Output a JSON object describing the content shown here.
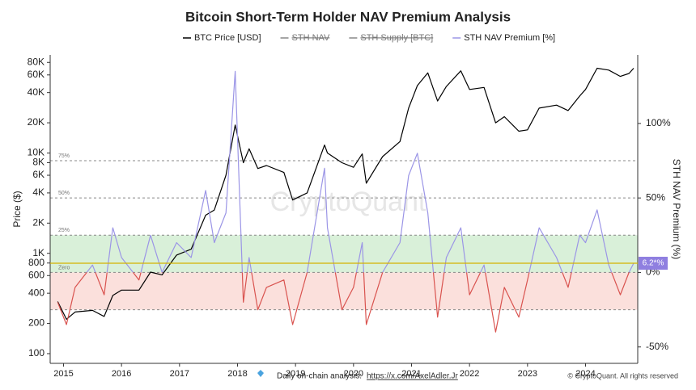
{
  "chart_data": {
    "type": "line",
    "title": "Bitcoin Short-Term Holder NAV Premium Analysis",
    "x": [
      2014.9,
      2015.05,
      2015.2,
      2015.5,
      2015.7,
      2015.85,
      2016.0,
      2016.3,
      2016.5,
      2016.7,
      2016.95,
      2017.2,
      2017.45,
      2017.6,
      2017.8,
      2017.96,
      2018.1,
      2018.2,
      2018.35,
      2018.5,
      2018.8,
      2018.95,
      2019.2,
      2019.5,
      2019.55,
      2019.8,
      2020.0,
      2020.15,
      2020.22,
      2020.5,
      2020.8,
      2020.95,
      2021.1,
      2021.28,
      2021.45,
      2021.6,
      2021.85,
      2022.0,
      2022.25,
      2022.45,
      2022.6,
      2022.85,
      2023.0,
      2023.2,
      2023.5,
      2023.7,
      2023.9,
      2024.0,
      2024.2,
      2024.4,
      2024.6,
      2024.75,
      2024.83
    ],
    "series": [
      {
        "name": "BTC Price [USD]",
        "color": "#000000",
        "values": [
          330,
          220,
          260,
          270,
          235,
          380,
          430,
          430,
          650,
          610,
          960,
          1100,
          2400,
          2700,
          6000,
          19000,
          8000,
          11000,
          7000,
          7500,
          6400,
          3400,
          4000,
          12000,
          10000,
          8000,
          7200,
          9800,
          5000,
          9200,
          13000,
          28000,
          47000,
          63000,
          33000,
          46000,
          66000,
          43000,
          45000,
          20000,
          23000,
          16500,
          17000,
          28000,
          30000,
          26500,
          37000,
          43000,
          70000,
          67000,
          58000,
          62000,
          70000
        ]
      },
      {
        "name": "STH NAV",
        "color": "#888888",
        "hidden": true
      },
      {
        "name": "STH Supply [BTC]",
        "color": "#888888",
        "hidden": true
      },
      {
        "name": "STH NAV Premium [%]",
        "color": "#9b95e6",
        "negative_color": "#d9534f",
        "axis": "y2",
        "values": [
          -20,
          -35,
          -10,
          5,
          -15,
          30,
          10,
          -5,
          25,
          0,
          20,
          10,
          55,
          20,
          40,
          135,
          -20,
          10,
          -25,
          -10,
          -5,
          -35,
          0,
          70,
          30,
          -25,
          -10,
          20,
          -35,
          0,
          20,
          65,
          80,
          40,
          -30,
          10,
          30,
          -15,
          5,
          -40,
          -10,
          -30,
          -5,
          30,
          10,
          -10,
          25,
          20,
          42,
          5,
          -15,
          0,
          6.2
        ]
      }
    ],
    "xlim": [
      2014.77,
      2024.9
    ],
    "xticks": [
      2015,
      2016,
      2017,
      2018,
      2019,
      2020,
      2021,
      2022,
      2023,
      2024
    ],
    "ylim": [
      80,
      95000
    ],
    "log_scale": true,
    "yticks": [
      100,
      200,
      400,
      600,
      800,
      {
        "value": 1000,
        "label": "1K"
      },
      {
        "value": 2000,
        "label": "2K"
      },
      {
        "value": 4000,
        "label": "4K"
      },
      {
        "value": 6000,
        "label": "6K"
      },
      {
        "value": 8000,
        "label": "8K"
      },
      {
        "value": 10000,
        "label": "10K"
      },
      {
        "value": 20000,
        "label": "20K"
      },
      {
        "value": 40000,
        "label": "40K"
      },
      {
        "value": 60000,
        "label": "60K"
      },
      {
        "value": 80000,
        "label": "80K"
      }
    ],
    "y_label": "Price ($)",
    "y2lim": [
      -61,
      146
    ],
    "y2ticks": [
      {
        "value": -50,
        "label": "-50%"
      },
      {
        "value": 0,
        "label": "0%"
      },
      {
        "value": 50,
        "label": "50%"
      },
      {
        "value": 100,
        "label": "100%"
      }
    ],
    "y2_label": "STH NAV Premium (%)",
    "reference_lines": [
      {
        "value": 75,
        "label": "75%"
      },
      {
        "value": 50,
        "label": "50%"
      },
      {
        "value": 25,
        "label": "25%"
      },
      {
        "value": 0,
        "label": "Zero"
      },
      {
        "value": -25
      }
    ],
    "bands": [
      {
        "from": 0,
        "to": 25,
        "color": "#d9f0d9"
      },
      {
        "from": -25,
        "to": 0,
        "color": "#fbe0dc"
      }
    ],
    "current_value": {
      "value": 6.2,
      "label": "6.2*%",
      "color": "#8f7fe0",
      "line_color": "#d4b300"
    },
    "watermark": "CryptoQuant"
  },
  "footer": {
    "note": "Daily on-chain analysis:",
    "link": "https://x.com/AxelAdler.Jr",
    "copyright": "© CryptoQuant. All rights reserved"
  }
}
